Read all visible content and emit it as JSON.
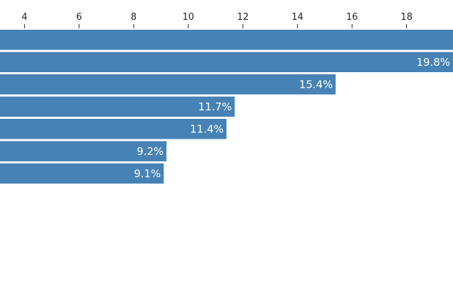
{
  "chart_data": {
    "type": "bar",
    "orientation": "horizontal",
    "title": "",
    "xlabel": "",
    "ylabel": "",
    "x_axis_position": "top",
    "x_ticks": [
      4,
      6,
      8,
      10,
      12,
      14,
      16,
      18
    ],
    "xlim": [
      3.1,
      19.7
    ],
    "grid": false,
    "legend": "none",
    "bar_color": "#4682b4",
    "label_color": "#ffffff",
    "series": [
      {
        "values": [
          20.5,
          19.8,
          15.4,
          11.7,
          11.4,
          9.2,
          9.1
        ],
        "labels": [
          "",
          "19.8%",
          "15.4%",
          "11.7%",
          "11.4%",
          "9.2%",
          "9.1%"
        ]
      }
    ]
  }
}
